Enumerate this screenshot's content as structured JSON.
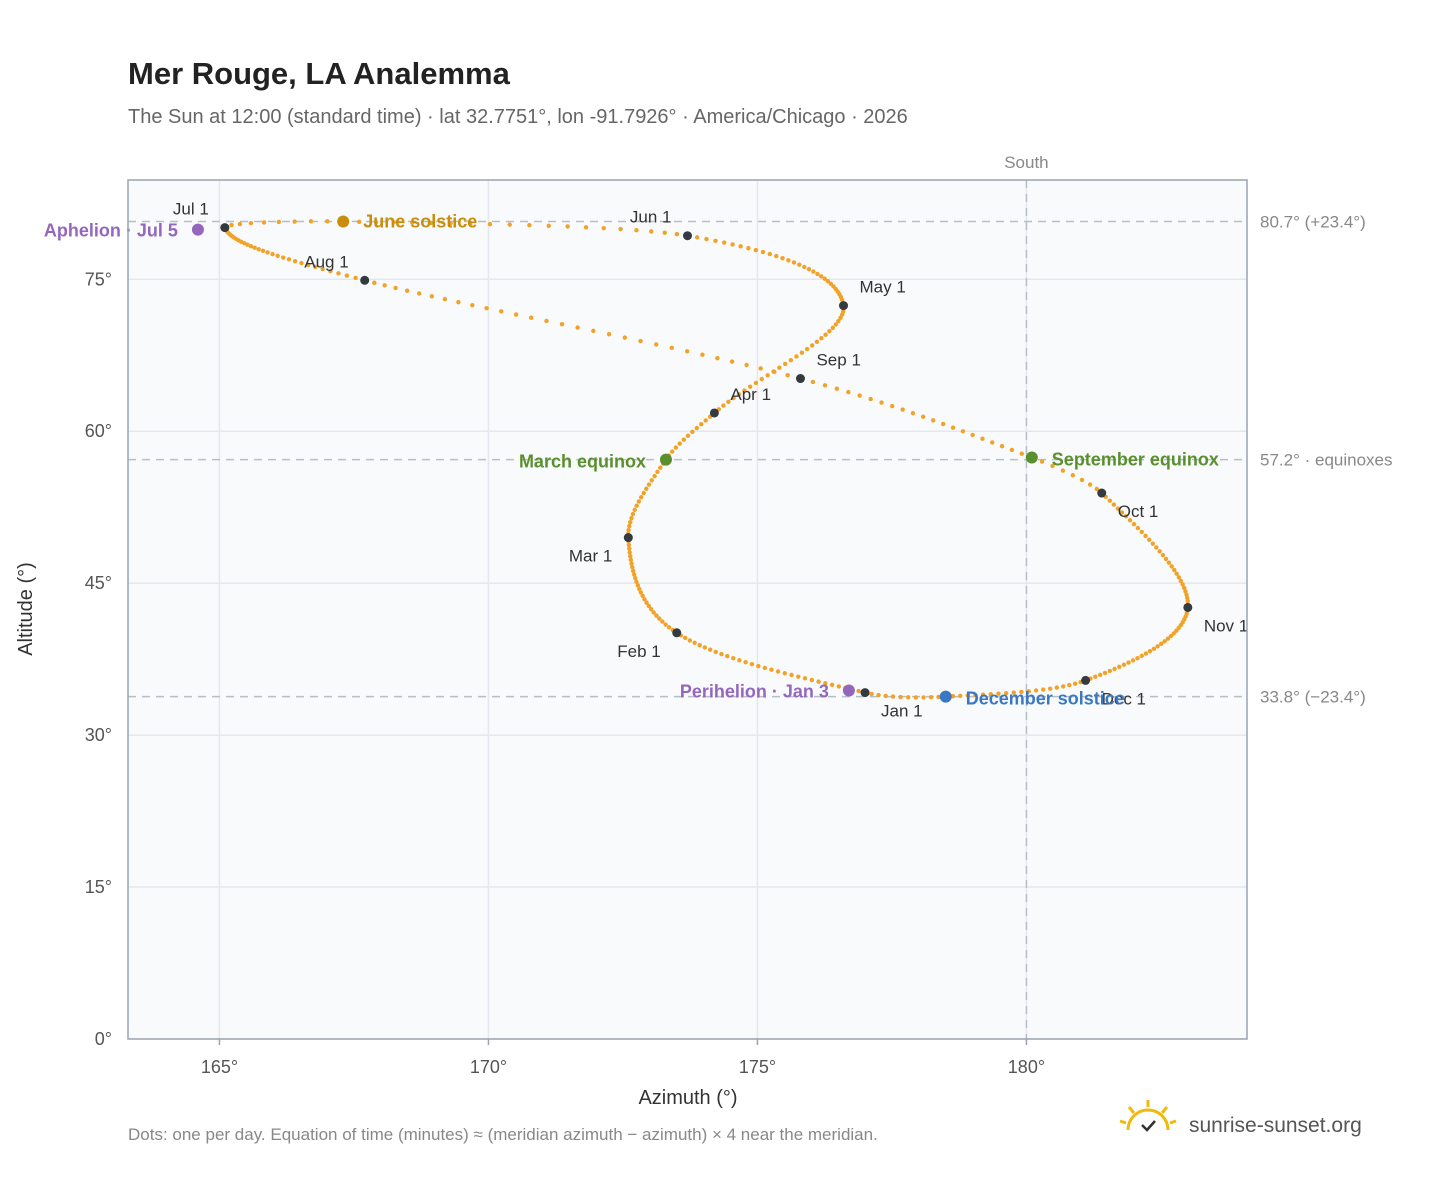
{
  "header": {
    "title": "Mer Rouge, LA Analemma",
    "subtitle": "The Sun at 12:00 (standard time) · lat 32.7751°, lon -91.7926° · America/Chicago · 2026"
  },
  "footer": {
    "note": "Dots: one per day. Equation of time (minutes) ≈ (meridian azimuth − azimuth) × 4 near the meridian.",
    "brand": "sunrise-sunset.org"
  },
  "colors": {
    "path": "#f2a227",
    "marker": "#343a40",
    "june_solstice": "#c98d0e",
    "december_solstice": "#3a78c3",
    "equinox": "#5a8f2e",
    "apsis": "#9467bd",
    "plot_bg": "#f8fafc",
    "grid": "#e4e8ee",
    "frame": "#9aa3af",
    "ref_line": "#b8bec6"
  },
  "chart_data": {
    "type": "scatter",
    "xlabel": "Azimuth (°)",
    "ylabel": "Altitude (°)",
    "xlim": [
      163.3,
      184.1
    ],
    "ylim": [
      0,
      84.8
    ],
    "x_ticks": [
      165,
      170,
      175,
      180
    ],
    "x_tick_labels": [
      "165°",
      "170°",
      "175°",
      "180°"
    ],
    "y_ticks": [
      0,
      15,
      30,
      45,
      60,
      75
    ],
    "y_tick_labels": [
      "0°",
      "15°",
      "30°",
      "45°",
      "60°",
      "75°"
    ],
    "grid": true,
    "meridian": {
      "azimuth": 180.0,
      "label": "South"
    },
    "reference_lines": [
      {
        "altitude": 80.7,
        "label": "80.7° (+23.4°)"
      },
      {
        "altitude": 57.2,
        "label": "57.2° · equinoxes"
      },
      {
        "altitude": 33.8,
        "label": "33.8° (−23.4°)"
      }
    ],
    "series": [
      {
        "points_per": "day",
        "points": [
          {
            "day": 1,
            "az": 177.0,
            "alt": 34.2
          },
          {
            "day": 32,
            "az": 173.5,
            "alt": 40.1
          },
          {
            "day": 60,
            "az": 172.6,
            "alt": 49.5
          },
          {
            "day": 79,
            "az": 173.3,
            "alt": 57.2
          },
          {
            "day": 91,
            "az": 174.2,
            "alt": 61.8
          },
          {
            "day": 121,
            "az": 176.6,
            "alt": 72.4
          },
          {
            "day": 152,
            "az": 173.7,
            "alt": 79.3
          },
          {
            "day": 172,
            "az": 167.3,
            "alt": 80.7
          },
          {
            "day": 182,
            "az": 165.1,
            "alt": 80.1
          },
          {
            "day": 213,
            "az": 167.7,
            "alt": 74.9
          },
          {
            "day": 244,
            "az": 175.8,
            "alt": 65.2
          },
          {
            "day": 266,
            "az": 180.1,
            "alt": 57.4
          },
          {
            "day": 274,
            "az": 181.4,
            "alt": 53.9
          },
          {
            "day": 305,
            "az": 183.0,
            "alt": 42.6
          },
          {
            "day": 335,
            "az": 181.1,
            "alt": 35.4
          },
          {
            "day": 355,
            "az": 178.5,
            "alt": 33.8
          },
          {
            "day": 365,
            "az": 177.1,
            "alt": 34.2
          }
        ]
      }
    ],
    "month_markers": [
      {
        "label": "Jan 1",
        "az": 177.0,
        "alt": 34.2
      },
      {
        "label": "Feb 1",
        "az": 173.5,
        "alt": 40.1
      },
      {
        "label": "Mar 1",
        "az": 172.6,
        "alt": 49.5
      },
      {
        "label": "Apr 1",
        "az": 174.2,
        "alt": 61.8
      },
      {
        "label": "May 1",
        "az": 176.6,
        "alt": 72.4
      },
      {
        "label": "Jun 1",
        "az": 173.7,
        "alt": 79.3
      },
      {
        "label": "Jul 1",
        "az": 165.1,
        "alt": 80.1
      },
      {
        "label": "Aug 1",
        "az": 167.7,
        "alt": 74.9
      },
      {
        "label": "Sep 1",
        "az": 175.8,
        "alt": 65.2
      },
      {
        "label": "Oct 1",
        "az": 181.4,
        "alt": 53.9
      },
      {
        "label": "Nov 1",
        "az": 183.0,
        "alt": 42.6
      },
      {
        "label": "Dec 1",
        "az": 181.1,
        "alt": 35.4
      }
    ],
    "events": [
      {
        "label": "June solstice",
        "kind": "june_solstice",
        "az": 167.3,
        "alt": 80.7
      },
      {
        "label": "December solstice",
        "kind": "december_solstice",
        "az": 178.5,
        "alt": 33.8
      },
      {
        "label": "March equinox",
        "kind": "equinox",
        "az": 173.3,
        "alt": 57.2
      },
      {
        "label": "September equinox",
        "kind": "equinox",
        "az": 180.1,
        "alt": 57.4
      },
      {
        "label": "Aphelion · Jul 5",
        "kind": "apsis",
        "az": 164.6,
        "alt": 79.9
      },
      {
        "label": "Perihelion · Jan 3",
        "kind": "apsis",
        "az": 176.7,
        "alt": 34.4
      }
    ]
  }
}
